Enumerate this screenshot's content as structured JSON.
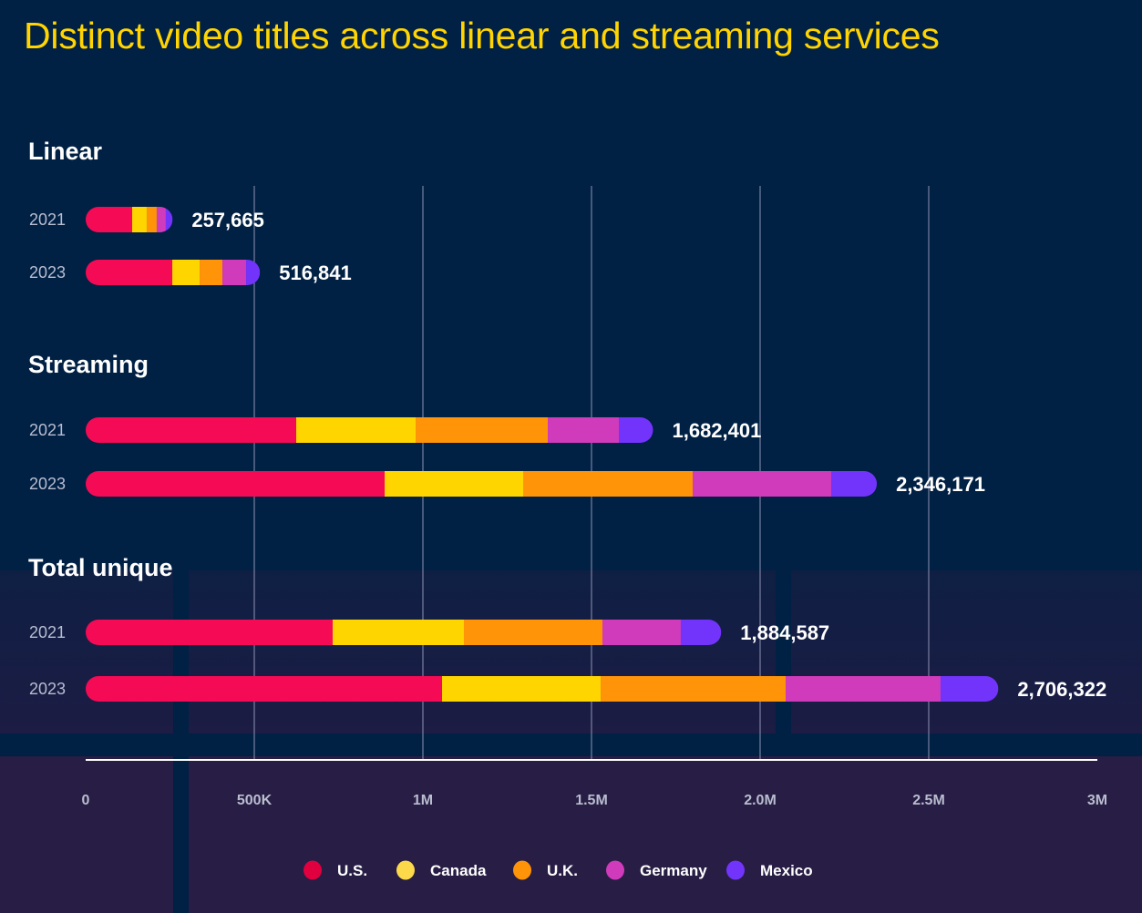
{
  "chart_data": {
    "type": "bar",
    "orientation": "horizontal",
    "stacked": true,
    "title": "Distinct video titles across linear and streaming services",
    "xlabel": "",
    "ylabel": "",
    "xlim": [
      0,
      3000000
    ],
    "x_ticks": [
      0,
      500000,
      1000000,
      1500000,
      2000000,
      2500000,
      3000000
    ],
    "x_tick_labels": [
      "0",
      "500K",
      "1M",
      "1.5M",
      "2.0M",
      "2.5M",
      "3M"
    ],
    "grid": "vertical",
    "legend_position": "bottom-center",
    "series": [
      {
        "name": "U.S.",
        "color": "#f50a55",
        "legend_color": "#e0003f"
      },
      {
        "name": "Canada",
        "color": "#ffd500",
        "legend_color": "#fcd94b"
      },
      {
        "name": "U.K.",
        "color": "#ff9408",
        "legend_color": "#ff9408"
      },
      {
        "name": "Germany",
        "color": "#cf3bbb",
        "legend_color": "#cf3bbb"
      },
      {
        "name": "Mexico",
        "color": "#7234fa",
        "legend_color": "#7234fa"
      }
    ],
    "groups": [
      {
        "name": "Linear",
        "rows": [
          {
            "year": "2021",
            "total": 257665,
            "total_label": "257,665",
            "values": [
              137800,
              43200,
              29700,
              27000,
              19965
            ]
          },
          {
            "year": "2023",
            "total": 516841,
            "total_label": "516,841",
            "values": [
              256800,
              81100,
              67600,
              70300,
              41041
            ]
          }
        ]
      },
      {
        "name": "Streaming",
        "rows": [
          {
            "year": "2021",
            "total": 1682401,
            "total_label": "1,682,401",
            "values": [
              624300,
              354100,
              391900,
              210800,
              101301
            ]
          },
          {
            "year": "2023",
            "total": 2346171,
            "total_label": "2,346,171",
            "values": [
              886500,
              410800,
              502700,
              410800,
              135371
            ]
          }
        ]
      },
      {
        "name": "Total unique",
        "rows": [
          {
            "year": "2021",
            "total": 1884587,
            "total_label": "1,884,587",
            "values": [
              732400,
              389200,
              410800,
              232400,
              119787
            ]
          },
          {
            "year": "2023",
            "total": 2706322,
            "total_label": "2,706,322",
            "values": [
              1056800,
              470300,
              548600,
              459500,
              171122
            ]
          }
        ]
      }
    ]
  }
}
